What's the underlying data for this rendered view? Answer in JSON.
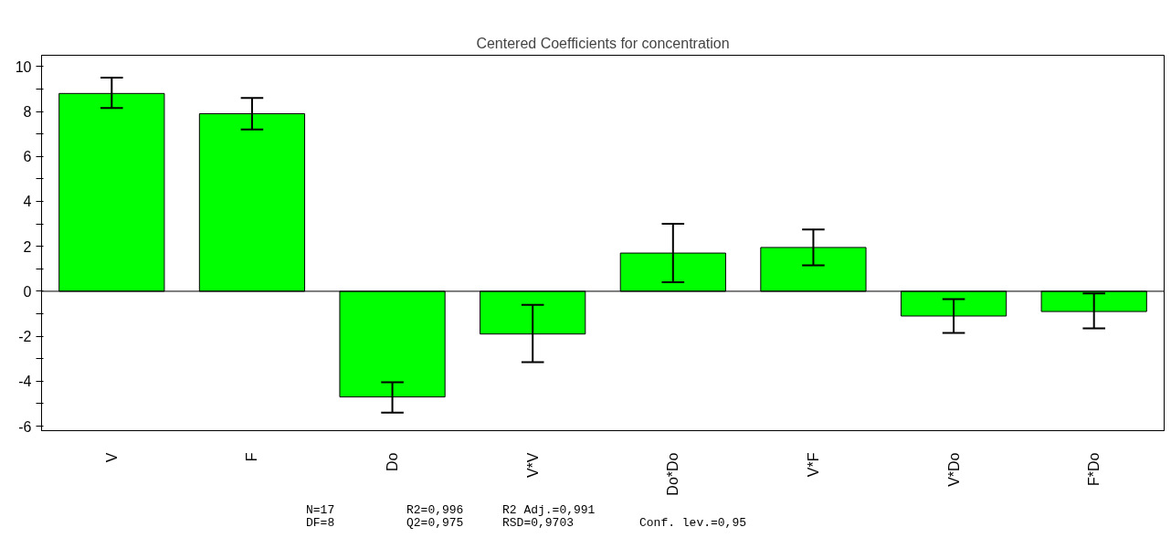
{
  "chart_data": {
    "type": "bar",
    "title": "Centered Coefficients for concentration",
    "categories": [
      "V",
      "F",
      "Do",
      "V*V",
      "Do*Do",
      "V*F",
      "V*Do",
      "F*Do"
    ],
    "values": [
      8.8,
      7.9,
      -4.7,
      -1.9,
      1.7,
      1.95,
      -1.1,
      -0.9
    ],
    "errors": [
      [
        8.15,
        9.5
      ],
      [
        7.2,
        8.6
      ],
      [
        -5.4,
        -4.05
      ],
      [
        -3.15,
        -0.6
      ],
      [
        0.4,
        3.0
      ],
      [
        1.15,
        2.75
      ],
      [
        -1.85,
        -0.35
      ],
      [
        -1.65,
        -0.1
      ]
    ],
    "color": "#00ff00",
    "ylim": [
      -6.2,
      10.5
    ],
    "yticks": [
      -6,
      {
        "value": -5,
        "label": null
      },
      -4,
      {
        "value": -3,
        "label": null
      },
      -2,
      {
        "value": -1,
        "label": null
      },
      0,
      {
        "value": 1,
        "label": null
      },
      2,
      {
        "value": 3,
        "label": null
      },
      4,
      {
        "value": 5,
        "label": null
      },
      6,
      {
        "value": 7,
        "label": null
      },
      8,
      {
        "value": 9,
        "label": null
      },
      10
    ],
    "grid": false,
    "ref_lines": [
      {
        "axis": "y",
        "value": 0,
        "color": "#000000"
      }
    ],
    "annotations": [
      "N=17",
      "R2=0,996",
      "R2 Adj.=0,991",
      "DF=8",
      "Q2=0,975",
      "RSD=0,9703",
      "Conf. lev.=0,95"
    ]
  }
}
